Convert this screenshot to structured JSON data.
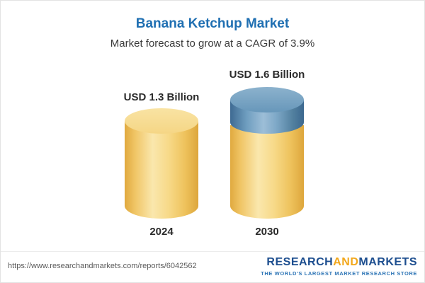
{
  "header": {
    "title": "Banana Ketchup Market",
    "subtitle": "Market forecast to grow at a CAGR of 3.9%"
  },
  "chart_data": {
    "type": "bar",
    "variant": "cylinder-infographic",
    "title": "Banana Ketchup Market",
    "subtitle": "Market forecast to grow at a CAGR of 3.9%",
    "cagr_percent": 3.9,
    "categories": [
      "2024",
      "2030"
    ],
    "values": [
      1.3,
      1.6
    ],
    "unit": "USD Billion",
    "value_labels": [
      "USD 1.3 Billion",
      "USD 1.6 Billion"
    ],
    "legend_position": "none",
    "grid": false,
    "colors": {
      "bar_base": "#f6ce6e",
      "growth_cap": "#5a88ae",
      "title": "#1f6fb2",
      "text": "#2b2b2b"
    }
  },
  "footer": {
    "url": "https://www.researchandmarkets.com/reports/6042562",
    "logo_research": "RESEARCH",
    "logo_and": "AND",
    "logo_markets": "MARKETS",
    "tagline": "THE WORLD'S LARGEST MARKET RESEARCH STORE"
  }
}
